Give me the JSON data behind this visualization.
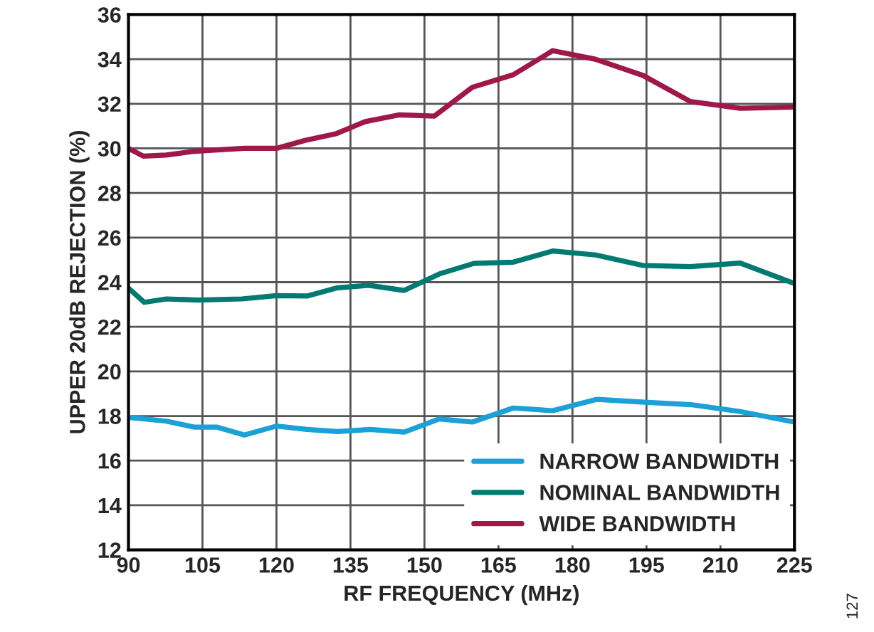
{
  "chart_data": {
    "type": "line",
    "xlabel": "RF FREQUENCY (MHz)",
    "ylabel": "UPPER 20dB REJECTION (%)",
    "xlim": [
      90,
      225
    ],
    "xticks": [
      90,
      105,
      120,
      135,
      150,
      165,
      180,
      195,
      210,
      225
    ],
    "ylim": [
      12,
      36
    ],
    "yticks": [
      12,
      14,
      16,
      18,
      20,
      22,
      24,
      26,
      28,
      30,
      32,
      34,
      36
    ],
    "grid": true,
    "legend": "bottom right",
    "marker": "none",
    "line_style": "solid",
    "annotations": [
      "127"
    ],
    "series": [
      {
        "name": "NARROW BANDWIDTH",
        "color": "#1ba1d7",
        "x": [
          90,
          97.7,
          103.4,
          108,
          113.5,
          120,
          126.2,
          132.4,
          139,
          145.9,
          153,
          159.7,
          168,
          176,
          185,
          194.6,
          204,
          214,
          225
        ],
        "values": [
          17.94,
          17.77,
          17.5,
          17.5,
          17.15,
          17.55,
          17.4,
          17.3,
          17.4,
          17.28,
          17.87,
          17.73,
          18.36,
          18.24,
          18.75,
          18.62,
          18.51,
          18.2,
          17.73
        ]
      },
      {
        "name": "NOMINAL BANDWIDTH",
        "color": "#007a73",
        "x": [
          90,
          93.2,
          97.7,
          104,
          113,
          120,
          126.2,
          132.4,
          138.7,
          145.9,
          153,
          160,
          168,
          176,
          184.7,
          194.3,
          203.9,
          214,
          225
        ],
        "values": [
          23.73,
          23.1,
          23.25,
          23.2,
          23.25,
          23.4,
          23.38,
          23.75,
          23.86,
          23.63,
          24.37,
          24.84,
          24.9,
          25.4,
          25.22,
          24.75,
          24.7,
          24.86,
          23.94
        ]
      },
      {
        "name": "WIDE BANDWIDTH",
        "color": "#a0174a",
        "x": [
          90,
          93,
          97.6,
          103.4,
          109.2,
          113.5,
          120,
          125.8,
          132,
          138,
          144.8,
          152,
          159.7,
          168,
          176,
          184.6,
          194.3,
          203.9,
          214,
          225
        ],
        "values": [
          30.0,
          29.65,
          29.7,
          29.87,
          29.95,
          30.0,
          30.0,
          30.36,
          30.65,
          31.2,
          31.5,
          31.45,
          32.74,
          33.3,
          34.38,
          34.0,
          33.27,
          32.1,
          31.8,
          31.85
        ]
      }
    ]
  }
}
